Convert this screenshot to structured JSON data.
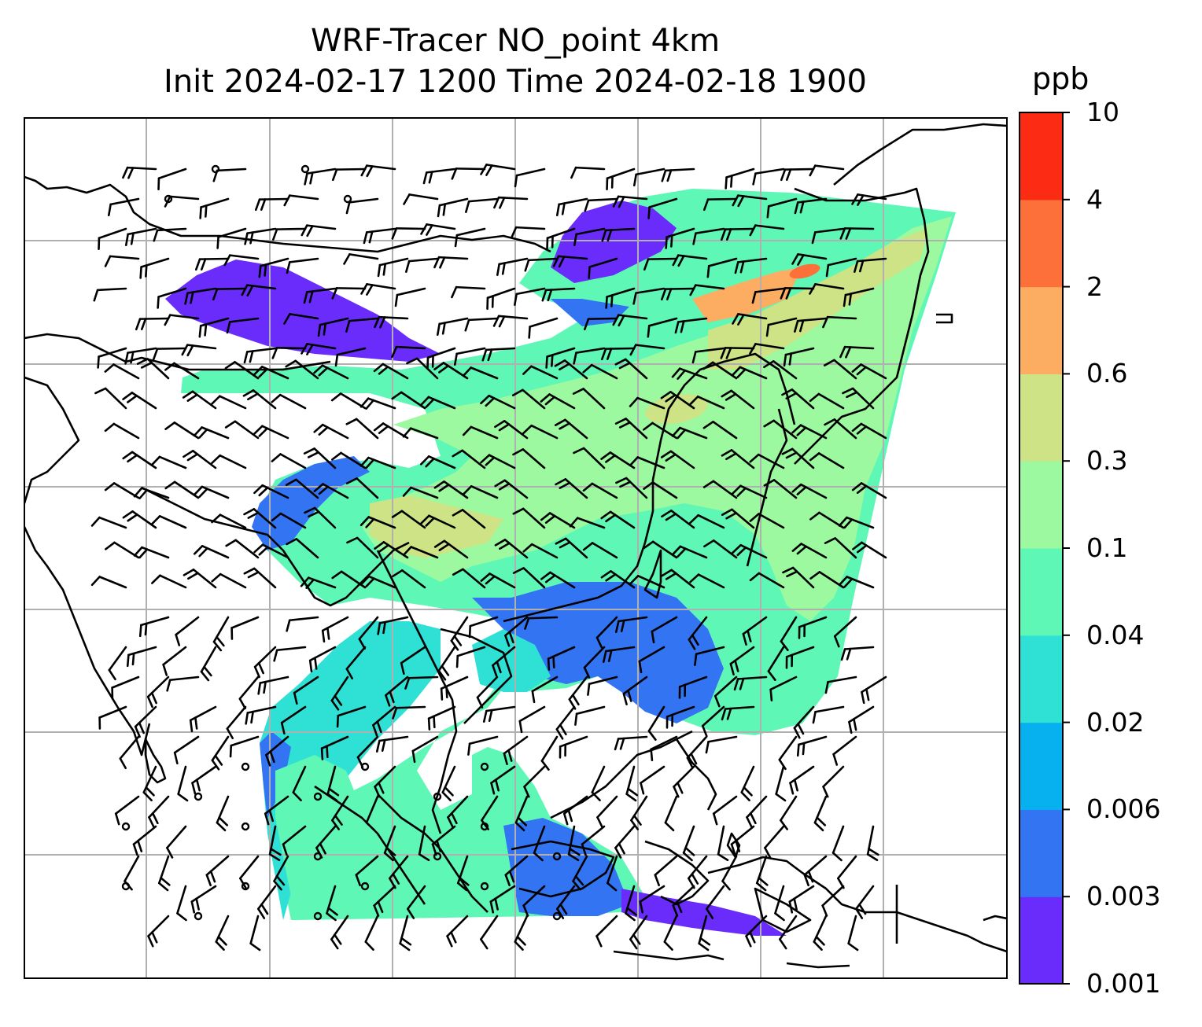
{
  "chart_data": {
    "type": "heatmap",
    "title": "WRF-Tracer NO_point 4km",
    "subtitle": "Init 2024-02-17 1200 Time 2024-02-18 1900",
    "colorbar": {
      "unit": "ppb",
      "levels": [
        "0.001",
        "0.003",
        "0.006",
        "0.02",
        "0.04",
        "0.1",
        "0.3",
        "0.6",
        "2",
        "4",
        "10"
      ],
      "colors": [
        "#6a2cfb",
        "#3374f3",
        "#07b0ee",
        "#2fe0d5",
        "#5ff7b6",
        "#9cf99f",
        "#cde386",
        "#fcad62",
        "#fd703a",
        "#fb2b14"
      ]
    },
    "overlay": "wind barbs",
    "coastlines": true,
    "gridlines": true,
    "axis_ticks_labels": false
  }
}
